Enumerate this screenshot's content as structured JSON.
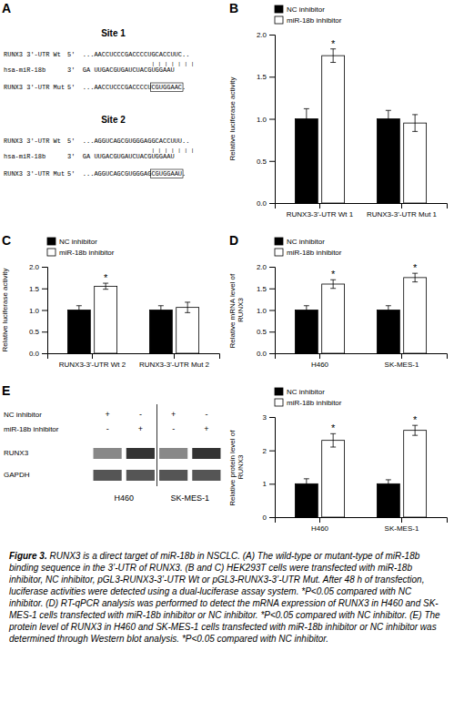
{
  "chart_data": [
    {
      "type": "sequence_alignment",
      "label": "A",
      "sites": [
        {
          "site_label": "Site 1",
          "lines": [
            {
              "label": "RUNX3 3'-UTR Wt",
              "sequence": "5'  ...AACCUCCCGACCCCUGCACCUUC.."
            },
            {
              "label": "hsa-miR-18b",
              "sequence": "3'  GA UUGACGUGAUCUACGUGGAAU"
            },
            {
              "label": "RUNX3 3'-UTR Mut",
              "sequence": "5'  ...AACCUCCCGACCCCUCGUGGAAC."
            }
          ],
          "bars": "| | | | | | |",
          "underline_text": "CGUGGAAC"
        },
        {
          "site_label": "Site 2",
          "lines": [
            {
              "label": "RUNX3 3'-UTR Wt",
              "sequence": "5'  ...AGGUCAGCGUGGGAGGCACCUUU.."
            },
            {
              "label": "hsa-miR-18b",
              "sequence": "3'  GA UUGACGUGAUCUACGUGGAAU"
            },
            {
              "label": "RUNX3 3'-UTR Mut",
              "sequence": "5'  ...AGGUCAGCGUGGGAGCGUGGAAU."
            }
          ],
          "bars": "| | | | | | |",
          "underline_text": "CGUGGAAU"
        }
      ]
    },
    {
      "type": "bar",
      "label": "B",
      "categories": [
        "RUNX3-3'-UTR Wt 1",
        "RUNX3-3'-UTR Mut 1"
      ],
      "series": [
        {
          "name": "NC inhibitor",
          "color": "black",
          "values": [
            1.0,
            1.0
          ],
          "errors": [
            0.12,
            0.1
          ]
        },
        {
          "name": "miR-18b inhibitor",
          "color": "white",
          "values": [
            1.75,
            0.95
          ],
          "errors": [
            0.08,
            0.1
          ],
          "significance": [
            "*",
            null
          ]
        }
      ],
      "ylabel": "Relative luciferase activity",
      "ylim": [
        0,
        2.0
      ],
      "yticks": [
        {
          "value": 0.0,
          "label": "0.0"
        },
        0.5,
        {
          "value": 1.0,
          "label": "1.0"
        },
        1.5,
        {
          "value": 2.0,
          "label": "2.0"
        }
      ],
      "legend": "upper left"
    },
    {
      "type": "bar",
      "label": "C",
      "categories": [
        "RUNX3-3'-UTR Wt 2",
        "RUNX3-3'-UTR Mut 2"
      ],
      "series": [
        {
          "name": "NC inhibitor",
          "color": "black",
          "values": [
            1.0,
            1.0
          ],
          "errors": [
            0.1,
            0.1
          ]
        },
        {
          "name": "miR-18b inhibitor",
          "color": "white",
          "values": [
            1.55,
            1.06
          ],
          "errors": [
            0.07,
            0.12
          ],
          "significance": [
            "*",
            null
          ]
        }
      ],
      "ylabel": "Relative luciferase activity",
      "ylim": [
        0,
        2.0
      ],
      "yticks": [
        {
          "value": 0.0,
          "label": "0.0"
        },
        0.5,
        {
          "value": 1.0,
          "label": "1.0"
        },
        1.5,
        {
          "value": 2.0,
          "label": "2.0"
        }
      ],
      "legend": "upper left"
    },
    {
      "type": "bar",
      "label": "D",
      "categories": [
        "H460",
        "SK-MES-1"
      ],
      "series": [
        {
          "name": "NC inhibitor",
          "color": "black",
          "values": [
            1.0,
            1.0
          ],
          "errors": [
            0.1,
            0.1
          ]
        },
        {
          "name": "miR-18b inhibitor",
          "color": "white",
          "values": [
            1.6,
            1.75
          ],
          "errors": [
            0.1,
            0.1
          ],
          "significance": [
            "*",
            "*"
          ]
        }
      ],
      "ylabel": "Relative mRNA level of RUNX3",
      "ylim": [
        0,
        2.0
      ],
      "yticks": [
        {
          "value": 0.0,
          "label": "0.0"
        },
        0.5,
        {
          "value": 1.0,
          "label": "1.0"
        },
        1.5,
        {
          "value": 2.0,
          "label": "2.0"
        }
      ],
      "legend": "upper left"
    },
    {
      "type": "western_blot",
      "label": "E",
      "row_labels": [
        "NC inhibitor",
        "miR-18b inhibitor"
      ],
      "row1_symbols": [
        "+",
        "-",
        "+",
        "-"
      ],
      "row2_symbols": [
        "-",
        "+",
        "-",
        "+"
      ],
      "band_labels": [
        "RUNX3",
        "GAPDH"
      ],
      "cell_labels": [
        "H460",
        "SK-MES-1"
      ]
    },
    {
      "type": "bar",
      "categories": [
        "H460",
        "SK-MES-1"
      ],
      "series": [
        {
          "name": "NC inhibitor",
          "color": "black",
          "values": [
            1.0,
            1.0
          ],
          "errors": [
            0.15,
            0.12
          ]
        },
        {
          "name": "miR-18b inhibitor",
          "color": "white",
          "values": [
            2.3,
            2.6
          ],
          "errors": [
            0.2,
            0.15
          ],
          "significance": [
            "*",
            "*"
          ]
        }
      ],
      "ylabel": "Relative protein level of RUNX3",
      "ylim": [
        0,
        3.0
      ],
      "yticks": [
        0,
        1,
        2,
        3
      ],
      "legend": "upper left"
    }
  ],
  "caption_bold": "Figure 3.",
  "caption_text": " RUNX3 is a direct target of miR-18b in NSCLC. (A) The wild-type or mutant-type of miR-18b binding sequence in the 3’-UTR of RUNX3. (B and C) HEK293T cells were transfected with miR-18b inhibitor, NC inhibitor, pGL3-RUNX3-3’-UTR Wt or pGL3-RUNX3-3’-UTR Mut. After 48 h of transfection, luciferase activities were detected using a dual-luciferase assay system. *P<0.05 compared with NC inhibitor. (D) RT-qPCR analysis was performed to detect the mRNA expression of RUNX3 in H460 and SK-MES-1 cells transfected with miR-18b inhibitor or NC inhibitor. *P<0.05 compared with NC inhibitor. (E) The protein level of RUNX3 in H460 and SK-MES-1 cells transfected with miR-18b inhibitor or NC inhibitor was determined through Western blot analysis. *P<0.05 compared with NC inhibitor."
}
